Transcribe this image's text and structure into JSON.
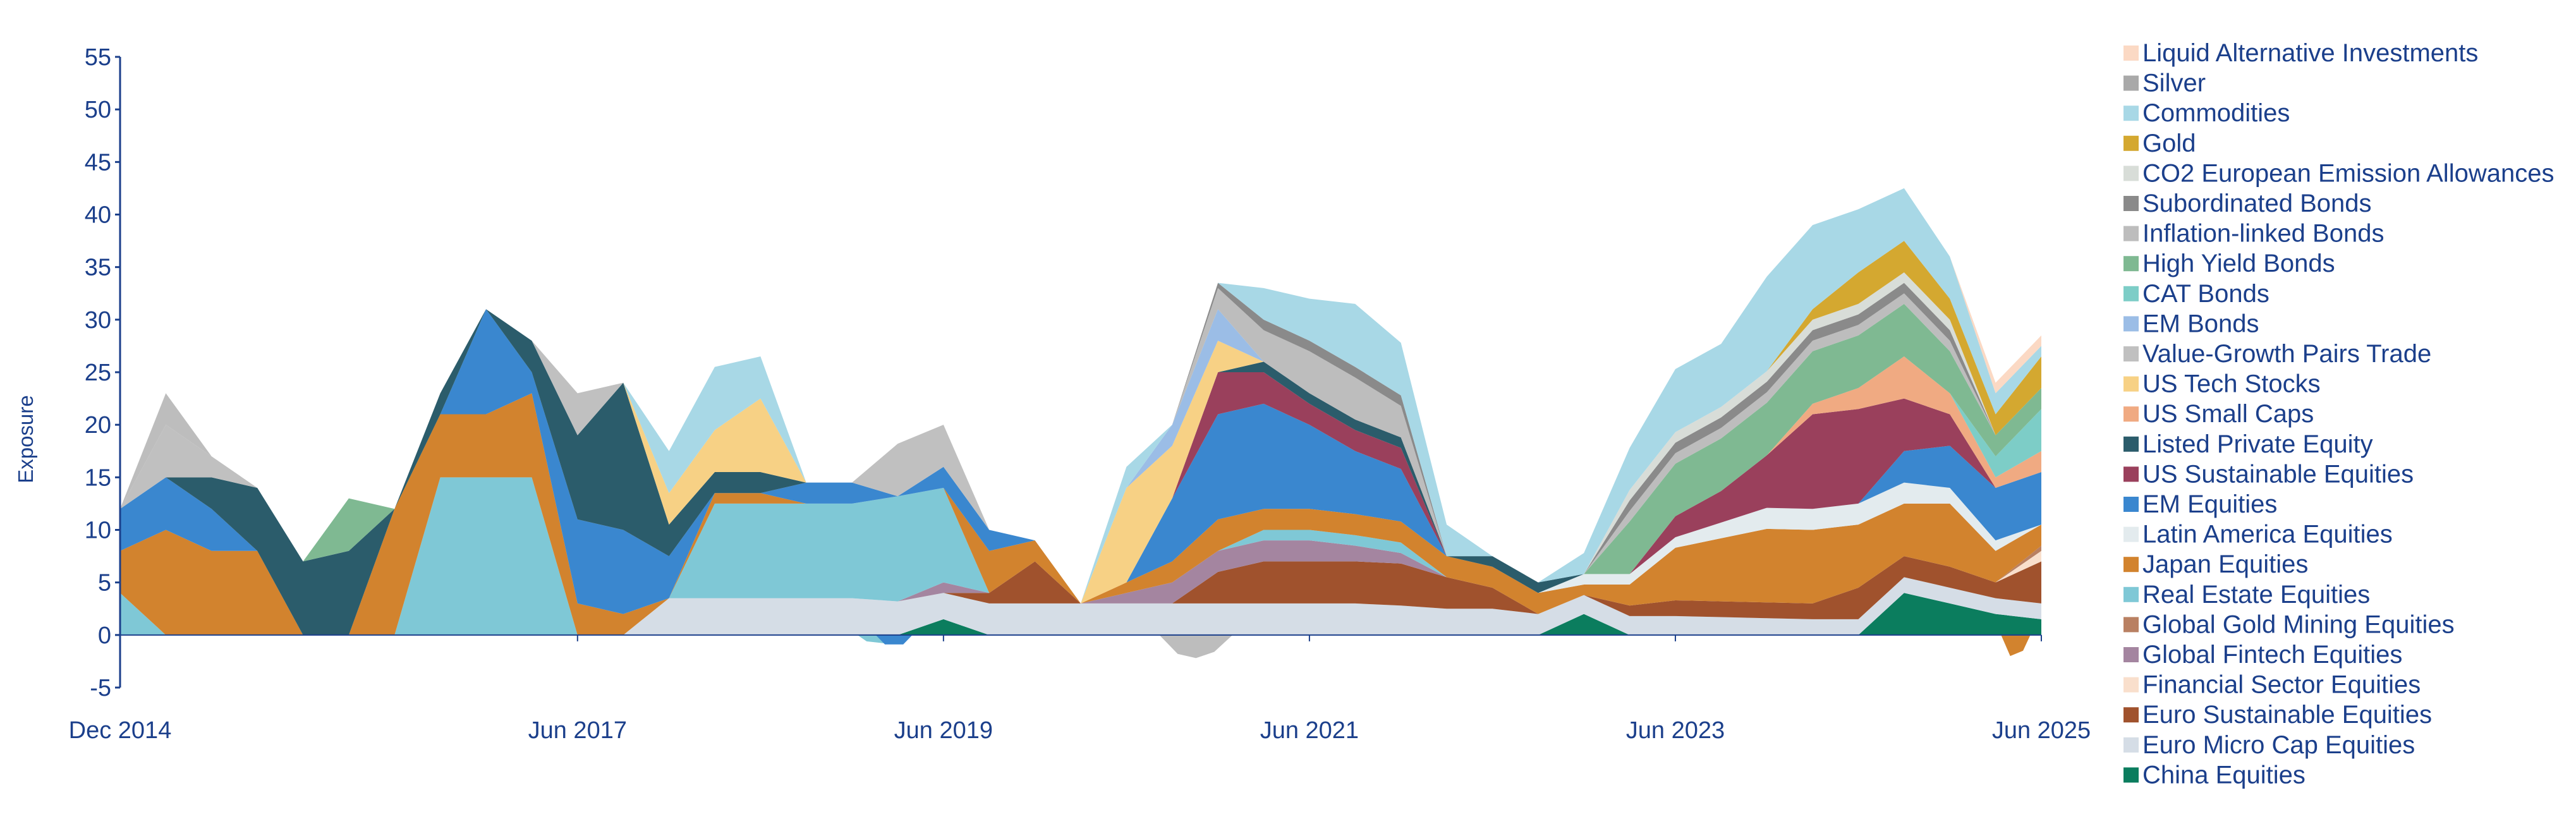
{
  "chart_data": {
    "type": "area",
    "stacked": true,
    "ylabel": "Exposure",
    "xlabel": "",
    "ylim": [
      -5,
      55
    ],
    "y_ticks": [
      -5,
      0,
      5,
      10,
      15,
      20,
      25,
      30,
      35,
      40,
      45,
      50,
      55
    ],
    "x_range": [
      2014.92,
      2025.42
    ],
    "x_ticks": [
      {
        "label": "Dec 2014",
        "x": 2014.92
      },
      {
        "label": "Jun 2017",
        "x": 2017.42
      },
      {
        "label": "Jun 2019",
        "x": 2019.42
      },
      {
        "label": "Jun 2021",
        "x": 2021.42
      },
      {
        "label": "Jun 2023",
        "x": 2023.42
      },
      {
        "label": "Jun 2025",
        "x": 2025.42
      }
    ],
    "legend_position": "right",
    "x": [
      2014.92,
      2015.17,
      2015.42,
      2015.67,
      2015.92,
      2016.17,
      2016.42,
      2016.67,
      2016.92,
      2017.17,
      2017.42,
      2017.67,
      2017.92,
      2018.17,
      2018.42,
      2018.67,
      2018.92,
      2019.17,
      2019.42,
      2019.67,
      2019.92,
      2020.17,
      2020.42,
      2020.67,
      2020.92,
      2021.17,
      2021.42,
      2021.67,
      2021.92,
      2022.17,
      2022.42,
      2022.67,
      2022.92,
      2023.17,
      2023.42,
      2023.67,
      2023.92,
      2024.17,
      2024.42,
      2024.67,
      2024.92,
      2025.17,
      2025.42
    ],
    "series": [
      {
        "name": "China Equities",
        "color": "#0b7d5e",
        "values": [
          0,
          0,
          0,
          0,
          0,
          0,
          0,
          0,
          0,
          0,
          0,
          0,
          0,
          0,
          0,
          0,
          0,
          0,
          1.5,
          0,
          0,
          0,
          0,
          0,
          0,
          0,
          0,
          0,
          0,
          0,
          0,
          0,
          2,
          0,
          0,
          0,
          0,
          0,
          0,
          4,
          3,
          2,
          1.5
        ]
      },
      {
        "name": "Euro Micro Cap Equities",
        "color": "#d5dde6",
        "values": [
          0,
          0,
          0,
          0,
          0,
          0,
          0,
          0,
          0,
          0,
          0,
          0,
          3.5,
          3.5,
          3.5,
          3.5,
          3.5,
          3.2,
          2.5,
          3,
          3,
          3,
          3,
          3,
          3,
          3,
          3,
          3,
          2.8,
          2.5,
          2.5,
          2,
          1.8,
          1.8,
          1.8,
          1.7,
          1.6,
          1.5,
          1.5,
          1.5,
          1.5,
          1.5,
          1.5
        ]
      },
      {
        "name": "Euro Sustainable Equities",
        "color": "#a0522d",
        "values": [
          0,
          0,
          0,
          0,
          0,
          0,
          0,
          0,
          0,
          0,
          0,
          0,
          0,
          0,
          0,
          0,
          0,
          0,
          0,
          1,
          4,
          0,
          0,
          0,
          3,
          4,
          4,
          4,
          4,
          3,
          2,
          0,
          0,
          1,
          1.5,
          1.5,
          1.5,
          1.5,
          3,
          2,
          2,
          1.5,
          4
        ]
      },
      {
        "name": "Financial Sector Equities",
        "color": "#f9dfcc",
        "values": [
          0,
          0,
          0,
          0,
          0,
          0,
          0,
          0,
          0,
          0,
          0,
          0,
          0,
          0,
          0,
          0,
          0,
          0,
          0,
          0,
          0,
          0,
          0,
          0,
          0,
          0,
          0,
          0,
          0,
          0,
          0,
          0,
          0,
          0,
          0,
          0,
          0,
          0,
          0,
          0,
          0,
          0,
          1
        ]
      },
      {
        "name": "Global Fintech Equities",
        "color": "#a485a0",
        "values": [
          0,
          0,
          0,
          0,
          0,
          0,
          0,
          0,
          0,
          0,
          0,
          0,
          0,
          0,
          0,
          0,
          0,
          0,
          1,
          0,
          0,
          0,
          1,
          2,
          2,
          2,
          2,
          1.5,
          1,
          0,
          0,
          0,
          0,
          0,
          0,
          0,
          0,
          0,
          0,
          0,
          0,
          0,
          0
        ]
      },
      {
        "name": "Global Gold Mining Equities",
        "color": "#b98062",
        "values": [
          0,
          0,
          0,
          0,
          0,
          0,
          0,
          0,
          0,
          0,
          0,
          0,
          0,
          0,
          0,
          0,
          0,
          0,
          0,
          0,
          0,
          0,
          0,
          0,
          0,
          0,
          0,
          0,
          0,
          0,
          0,
          0,
          0,
          0,
          0,
          0,
          0,
          0,
          0,
          0,
          0,
          0,
          0.5
        ]
      },
      {
        "name": "Real Estate Equities",
        "color": "#7fc8d6",
        "values": [
          4,
          0,
          0,
          0,
          0,
          0,
          0,
          15,
          15,
          15,
          0,
          0,
          0,
          9,
          9,
          9,
          9,
          10,
          9,
          0,
          0,
          0,
          0,
          0,
          0,
          1,
          1,
          1,
          1,
          0,
          0,
          0,
          0,
          0,
          0,
          0,
          0,
          0,
          0,
          0,
          0,
          0,
          0
        ]
      },
      {
        "name": "Japan Equities",
        "color": "#d2832e",
        "values": [
          4,
          10,
          8,
          8,
          0,
          0,
          12,
          6,
          6,
          8,
          3,
          2,
          0,
          1,
          1,
          0,
          0,
          0,
          0,
          4,
          2,
          0,
          1,
          2,
          3,
          2,
          2,
          2,
          2,
          2,
          2,
          2,
          1,
          2,
          5,
          6,
          7,
          7,
          6,
          5,
          6,
          3,
          2
        ]
      },
      {
        "name": "Latin America Equities",
        "color": "#e3ebee",
        "values": [
          0,
          0,
          0,
          0,
          0,
          0,
          0,
          0,
          0,
          0,
          0,
          0,
          0,
          0,
          0,
          0,
          0,
          0,
          0,
          0,
          0,
          0,
          0,
          0,
          0,
          0,
          0,
          0,
          0,
          0,
          0,
          0,
          1,
          1,
          1,
          1.5,
          2,
          2,
          2,
          2,
          1.5,
          1,
          0
        ]
      },
      {
        "name": "EM Equities",
        "color": "#3a87cf",
        "values": [
          4,
          5,
          4,
          0,
          0,
          0,
          0,
          0,
          10,
          2,
          8,
          8,
          4,
          0,
          0,
          2,
          2,
          0,
          2,
          2,
          0,
          0,
          0,
          6,
          10,
          10,
          8,
          6,
          5,
          0,
          0,
          0,
          0,
          0,
          0,
          0,
          0,
          0,
          0,
          3,
          4,
          5,
          5
        ]
      },
      {
        "name": "US Sustainable Equities",
        "color": "#9a405c",
        "values": [
          0,
          0,
          0,
          0,
          0,
          0,
          0,
          0,
          0,
          0,
          0,
          0,
          0,
          0,
          0,
          0,
          0,
          0,
          0,
          0,
          0,
          0,
          0,
          0,
          4,
          3,
          2,
          2,
          2,
          0,
          0,
          0,
          0,
          0,
          2,
          3,
          5,
          9,
          9,
          5,
          3,
          0,
          0
        ]
      },
      {
        "name": "Listed Private Equity",
        "color": "#2b5c6b",
        "values": [
          0,
          0,
          3,
          6,
          7,
          8,
          0,
          2,
          0,
          3,
          8,
          14,
          3,
          2,
          2,
          0,
          0,
          0,
          0,
          0,
          0,
          0,
          0,
          0,
          0,
          1,
          1,
          1,
          1,
          0,
          1,
          1,
          0,
          0,
          0,
          0,
          0,
          0,
          0,
          0,
          0,
          0,
          0
        ]
      },
      {
        "name": "US Small Caps",
        "color": "#f0aa82",
        "values": [
          0,
          0,
          0,
          0,
          0,
          0,
          0,
          0,
          0,
          0,
          0,
          0,
          0,
          0,
          0,
          0,
          0,
          0,
          0,
          0,
          0,
          0,
          0,
          0,
          0,
          0,
          0,
          0,
          0,
          0,
          0,
          0,
          0,
          0,
          0,
          0,
          0,
          1,
          2,
          4,
          2,
          1,
          2
        ]
      },
      {
        "name": "US Tech Stocks",
        "color": "#f7d185",
        "values": [
          0,
          0,
          0,
          0,
          0,
          0,
          0,
          0,
          0,
          0,
          0,
          0,
          3,
          4,
          7,
          0,
          0,
          0,
          0,
          0,
          0,
          0,
          9,
          5,
          3,
          0,
          0,
          0,
          0,
          0,
          0,
          0,
          0,
          0,
          0,
          0,
          0,
          0,
          0,
          0,
          0,
          0,
          0
        ]
      },
      {
        "name": "Value-Growth Pairs Trade",
        "color": "#c0c0c0",
        "values": [
          0,
          5,
          2,
          0,
          0,
          0,
          0,
          0,
          0,
          0,
          4,
          0,
          0,
          0,
          0,
          0,
          0,
          5,
          4,
          0,
          0,
          0,
          0,
          0,
          0,
          0,
          0,
          0,
          0,
          0,
          0,
          0,
          0,
          0,
          0,
          0,
          0,
          0,
          0,
          0,
          0,
          0,
          0
        ]
      },
      {
        "name": "EM Bonds",
        "color": "#9bbde6",
        "values": [
          0,
          0,
          0,
          0,
          0,
          0,
          0,
          0,
          0,
          0,
          0,
          0,
          0,
          0,
          0,
          0,
          0,
          0,
          0,
          0,
          0,
          0,
          0,
          2,
          3,
          0,
          0,
          0,
          0,
          0,
          0,
          0,
          0,
          0,
          0,
          0,
          0,
          0,
          0,
          0,
          0,
          0,
          0
        ]
      },
      {
        "name": "CAT Bonds",
        "color": "#7dcdc7",
        "values": [
          0,
          0,
          0,
          0,
          0,
          0,
          0,
          0,
          0,
          0,
          0,
          0,
          0,
          0,
          0,
          0,
          0,
          0,
          0,
          0,
          0,
          0,
          0,
          0,
          0,
          0,
          0,
          0,
          0,
          0,
          0,
          0,
          0,
          0,
          0,
          0,
          0,
          0,
          0,
          0,
          0,
          2,
          4
        ]
      },
      {
        "name": "High Yield Bonds",
        "color": "#7fb992",
        "values": [
          0,
          0,
          0,
          0,
          0,
          5,
          0,
          0,
          0,
          0,
          0,
          0,
          0,
          0,
          0,
          0,
          0,
          0,
          0,
          0,
          0,
          0,
          0,
          0,
          0,
          0,
          0,
          0,
          0,
          0,
          0,
          0,
          0,
          5,
          5,
          5,
          5,
          5,
          5,
          5,
          4,
          2,
          2
        ]
      },
      {
        "name": "Inflation-linked Bonds",
        "color": "#bdbdbd",
        "values": [
          0,
          3,
          0,
          0,
          0,
          0,
          0,
          0,
          0,
          0,
          0,
          0,
          0,
          0,
          0,
          0,
          0,
          0,
          0,
          0,
          0,
          0,
          0,
          0,
          2,
          3,
          4,
          4,
          3,
          0,
          0,
          0,
          0,
          1,
          1,
          1,
          1,
          1,
          1,
          1,
          1,
          0,
          0
        ]
      },
      {
        "name": "Subordinated Bonds",
        "color": "#8a8a8a",
        "values": [
          0,
          0,
          0,
          0,
          0,
          0,
          0,
          0,
          0,
          0,
          0,
          0,
          0,
          0,
          0,
          0,
          0,
          0,
          0,
          0,
          0,
          0,
          0,
          0,
          0.5,
          1,
          1,
          1,
          1,
          0,
          0,
          0,
          0,
          1,
          1,
          1,
          1,
          1,
          1,
          1,
          1,
          0,
          0
        ]
      },
      {
        "name": "CO2 European Emission Allowances",
        "color": "#d8ddd8",
        "values": [
          0,
          0,
          0,
          0,
          0,
          0,
          0,
          0,
          0,
          0,
          0,
          0,
          0,
          0,
          0,
          0,
          0,
          0,
          0,
          0,
          0,
          0,
          0,
          0,
          0,
          0,
          0,
          0,
          0,
          0,
          0,
          0,
          0,
          1,
          1,
          1,
          1,
          1,
          1,
          1,
          1,
          0,
          0
        ]
      },
      {
        "name": "Gold",
        "color": "#d4a830",
        "values": [
          0,
          0,
          0,
          0,
          0,
          0,
          0,
          0,
          0,
          0,
          0,
          0,
          0,
          0,
          0,
          0,
          0,
          0,
          0,
          0,
          0,
          0,
          0,
          0,
          0,
          0,
          0,
          0,
          0,
          0,
          0,
          0,
          0,
          0,
          0,
          0,
          0,
          1,
          3,
          3,
          2,
          2,
          3
        ]
      },
      {
        "name": "Commodities",
        "color": "#a8d8e6",
        "values": [
          0,
          0,
          0,
          0,
          0,
          0,
          0,
          0,
          0,
          0,
          0,
          0,
          4,
          6,
          4,
          0,
          0,
          0,
          0,
          0,
          0,
          0,
          2,
          0,
          0,
          3,
          4,
          6,
          5,
          3,
          0,
          0,
          2,
          4,
          6,
          6,
          9,
          8,
          6,
          5,
          4,
          2,
          1
        ]
      },
      {
        "name": "Silver",
        "color": "#a9a9a9",
        "values": [
          0,
          0,
          0,
          0,
          0,
          0,
          0,
          0,
          0,
          0,
          0,
          0,
          0,
          0,
          0,
          0,
          0,
          0,
          0,
          0,
          0,
          0,
          0,
          0,
          0,
          0,
          0,
          0,
          0,
          0,
          0,
          0,
          0,
          0,
          0,
          0,
          0,
          0,
          0,
          0,
          0,
          0,
          0
        ]
      },
      {
        "name": "Liquid Alternative Investments",
        "color": "#fbd9c4",
        "values": [
          0,
          0,
          0,
          0,
          0,
          0,
          0,
          0,
          0,
          0,
          0,
          0,
          0,
          0,
          0,
          0,
          0,
          0,
          0,
          0,
          0,
          0,
          0,
          0,
          0,
          0,
          0,
          0,
          0,
          0,
          0,
          0,
          0,
          0,
          0,
          0,
          0,
          0,
          0,
          0,
          0,
          1,
          1
        ]
      }
    ],
    "negatives": [
      {
        "name": "Real Estate Equities",
        "color": "#7fc8d6",
        "x": [
          2018.95,
          2019.0,
          2019.1,
          2019.2,
          2019.25
        ],
        "values": [
          0,
          -0.6,
          -0.8,
          -0.6,
          0
        ]
      },
      {
        "name": "EM Equities",
        "color": "#3a87cf",
        "x": [
          2019.05,
          2019.1,
          2019.2,
          2019.25
        ],
        "values": [
          0,
          -0.9,
          -0.9,
          0
        ]
      },
      {
        "name": "Inflation-linked Bonds",
        "color": "#bdbdbd",
        "x": [
          2020.6,
          2020.7,
          2020.8,
          2020.9,
          2021.0
        ],
        "values": [
          0,
          -1.8,
          -2.2,
          -1.6,
          0
        ]
      },
      {
        "name": "Japan Equities",
        "color": "#d2832e",
        "x": [
          2025.2,
          2025.25,
          2025.32,
          2025.36
        ],
        "values": [
          0,
          -2.0,
          -1.5,
          0
        ]
      }
    ]
  }
}
